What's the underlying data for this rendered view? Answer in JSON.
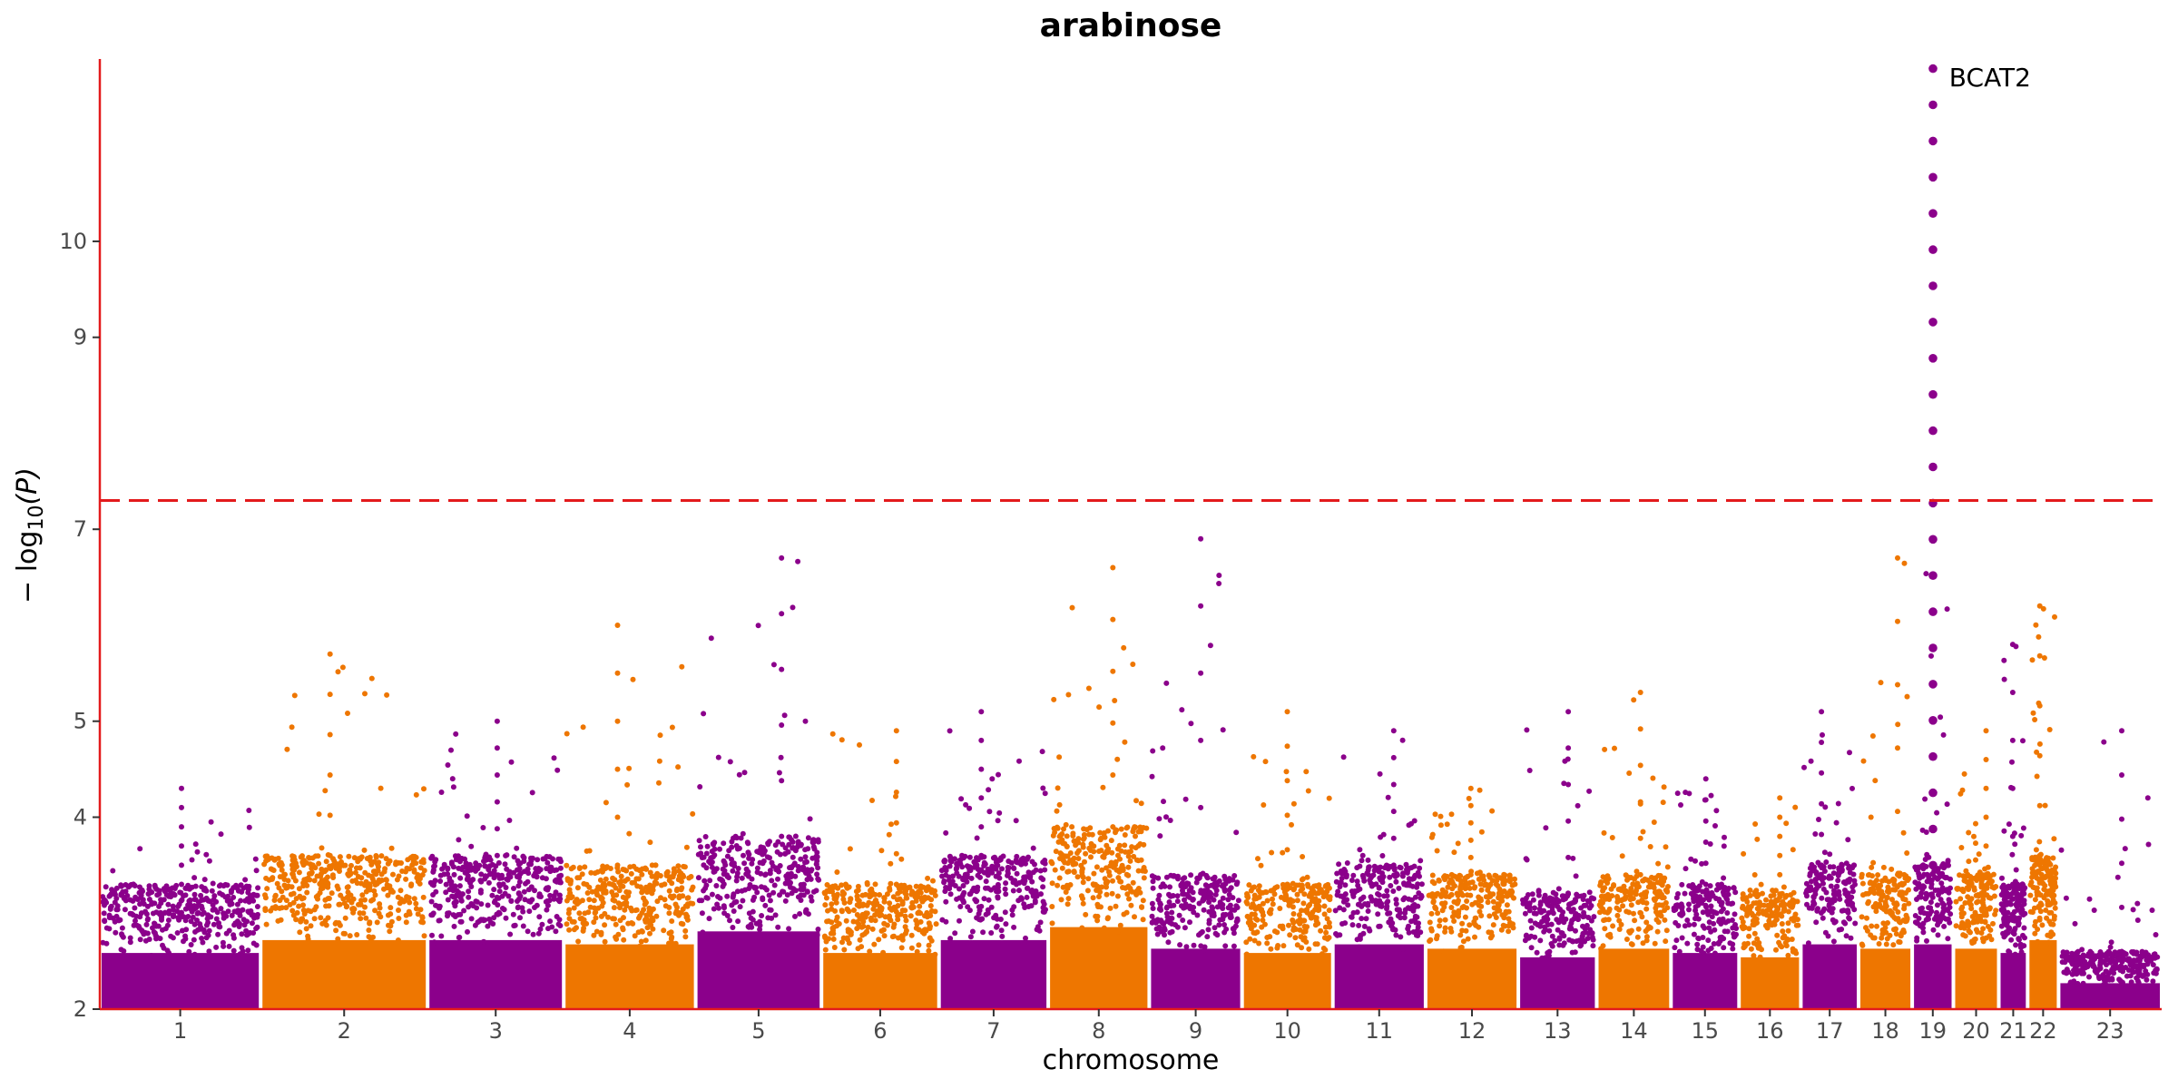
{
  "chart_data": {
    "type": "scatter",
    "subtype": "manhattan",
    "title": "arabinose",
    "xlabel": "chromosome",
    "ylabel": "−log10(P)",
    "ylabel_parts": {
      "minus": "− log",
      "sub": "10",
      "arg": "(P)"
    },
    "ylim": [
      2,
      11.9
    ],
    "yticks": [
      2,
      4,
      5,
      7,
      9,
      10
    ],
    "colors": {
      "odd": "#8b008b",
      "even": "#ee7600",
      "threshold": "#e31a1c",
      "axis": "#e31a1c"
    },
    "threshold": 7.3,
    "threshold_style": "dashed",
    "chromosomes": [
      {
        "label": "1",
        "span": 0.078,
        "peak": 4.3,
        "base": 3.3
      },
      {
        "label": "2",
        "span": 0.081,
        "peak": 5.7,
        "base": 3.6
      },
      {
        "label": "3",
        "span": 0.066,
        "peak": 5.0,
        "base": 3.6
      },
      {
        "label": "4",
        "span": 0.064,
        "peak": 6.0,
        "base": 3.5
      },
      {
        "label": "5",
        "span": 0.061,
        "peak": 6.7,
        "base": 3.8
      },
      {
        "label": "6",
        "span": 0.057,
        "peak": 4.9,
        "base": 3.3
      },
      {
        "label": "7",
        "span": 0.053,
        "peak": 5.1,
        "base": 3.6
      },
      {
        "label": "8",
        "span": 0.049,
        "peak": 6.6,
        "base": 3.9
      },
      {
        "label": "9",
        "span": 0.045,
        "peak": 6.9,
        "base": 3.4
      },
      {
        "label": "10",
        "span": 0.044,
        "peak": 5.1,
        "base": 3.3
      },
      {
        "label": "11",
        "span": 0.045,
        "peak": 4.9,
        "base": 3.5
      },
      {
        "label": "12",
        "span": 0.045,
        "peak": 4.3,
        "base": 3.4
      },
      {
        "label": "13",
        "span": 0.038,
        "peak": 5.1,
        "base": 3.2
      },
      {
        "label": "14",
        "span": 0.036,
        "peak": 5.3,
        "base": 3.4
      },
      {
        "label": "15",
        "span": 0.033,
        "peak": 4.4,
        "base": 3.3
      },
      {
        "label": "16",
        "span": 0.03,
        "peak": 4.2,
        "base": 3.2
      },
      {
        "label": "17",
        "span": 0.028,
        "peak": 5.1,
        "base": 3.5
      },
      {
        "label": "18",
        "span": 0.026,
        "peak": 6.7,
        "base": 3.4
      },
      {
        "label": "19",
        "span": 0.02,
        "peak": 11.8,
        "base": 3.5
      },
      {
        "label": "20",
        "span": 0.022,
        "peak": 4.9,
        "base": 3.4
      },
      {
        "label": "21",
        "span": 0.014,
        "peak": 5.8,
        "base": 3.3
      },
      {
        "label": "22",
        "span": 0.015,
        "peak": 6.2,
        "base": 3.6
      },
      {
        "label": "23",
        "span": 0.05,
        "peak": 4.9,
        "base": 2.6
      }
    ],
    "annotations": [
      {
        "text": "BCAT2",
        "chromosome": "19",
        "y": 11.7
      }
    ]
  }
}
